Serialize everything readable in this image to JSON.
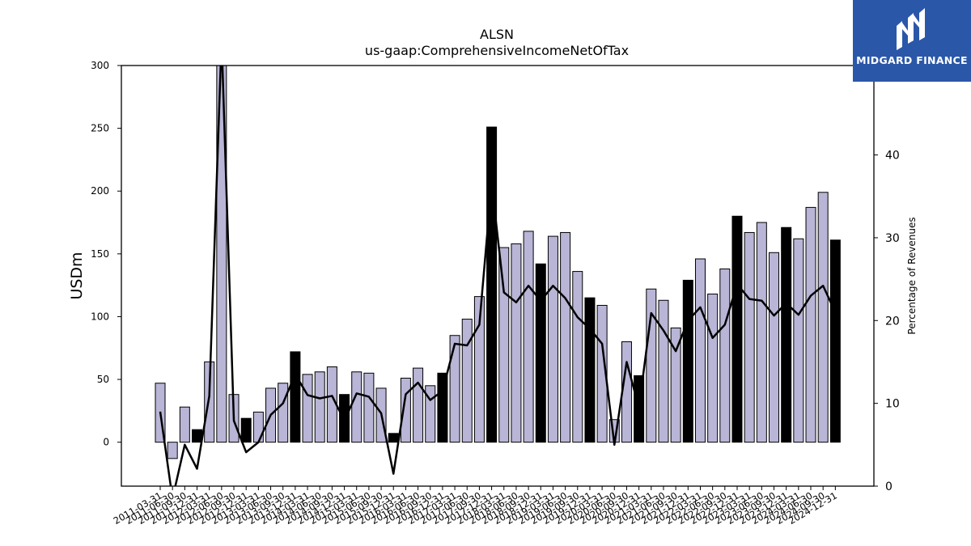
{
  "brand": {
    "name": "MIDGARD FINANCE",
    "logo_icon": "midgard-m-icon",
    "color": "#2b57a8"
  },
  "chart_data": {
    "type": "bar+line",
    "title": "ALSN",
    "subtitle": "us-gaap:ComprehensiveIncomeNetOfTax",
    "ylabel": "USDm",
    "y2label": "Percentage of Revenues",
    "ylim": [
      -35,
      300
    ],
    "y2lim": [
      0,
      50.8
    ],
    "yticks": [
      0,
      50,
      100,
      150,
      200,
      250,
      300
    ],
    "y2ticks": [
      0,
      10,
      20,
      30,
      40
    ],
    "bar_color": "#b8b5d6",
    "q4_bar_color": "#000000",
    "line_color": "#000000",
    "categories": [
      "2011-03-31",
      "2011-06-30",
      "2011-09-30",
      "2011-12-31",
      "2012-03-31",
      "2012-06-30",
      "2012-09-30",
      "2012-12-31",
      "2013-03-31",
      "2013-06-30",
      "2013-09-30",
      "2013-12-31",
      "2014-03-31",
      "2014-06-30",
      "2014-09-30",
      "2014-12-31",
      "2015-03-31",
      "2015-06-30",
      "2015-09-30",
      "2015-12-31",
      "2016-03-31",
      "2016-06-30",
      "2016-09-30",
      "2016-12-31",
      "2017-03-31",
      "2017-06-30",
      "2017-09-30",
      "2017-12-31",
      "2018-03-31",
      "2018-06-30",
      "2018-09-30",
      "2018-12-31",
      "2019-03-31",
      "2019-06-30",
      "2019-09-30",
      "2019-12-31",
      "2020-03-31",
      "2020-06-30",
      "2020-09-30",
      "2020-12-31",
      "2021-03-31",
      "2021-06-30",
      "2021-09-30",
      "2021-12-31",
      "2022-03-31",
      "2022-06-30",
      "2022-09-30",
      "2022-12-31",
      "2023-03-31",
      "2023-06-30",
      "2023-09-30",
      "2023-12-31",
      "2024-03-31",
      "2024-06-30",
      "2024-09-30",
      "2024-12-31"
    ],
    "series": [
      {
        "type": "bar",
        "axis": "left",
        "values": [
          47,
          -13,
          28,
          10,
          64,
          320,
          38,
          19,
          24,
          43,
          47,
          72,
          54,
          56,
          60,
          38,
          56,
          55,
          43,
          7,
          51,
          59,
          45,
          55,
          85,
          98,
          116,
          251,
          155,
          158,
          168,
          142,
          164,
          167,
          136,
          115,
          109,
          18,
          80,
          53,
          122,
          113,
          91,
          129,
          146,
          118,
          138,
          180,
          167,
          175,
          151,
          171,
          162,
          187,
          199,
          161
        ]
      },
      {
        "type": "line",
        "axis": "right",
        "values": [
          9.0,
          -1.5,
          5.0,
          2.1,
          10.9,
          54.0,
          7.9,
          4.1,
          5.3,
          8.6,
          10.0,
          13.5,
          11.0,
          10.6,
          10.9,
          7.9,
          11.2,
          10.8,
          8.8,
          1.5,
          11.1,
          12.5,
          10.4,
          11.5,
          17.2,
          17.0,
          19.5,
          36.6,
          23.4,
          22.2,
          24.2,
          22.4,
          24.2,
          22.7,
          20.4,
          19.0,
          17.2,
          5.0,
          15.0,
          9.5,
          20.9,
          18.8,
          16.3,
          20.0,
          21.6,
          17.9,
          19.5,
          24.4,
          22.6,
          22.4,
          20.6,
          22.1,
          20.7,
          23.0,
          24.2,
          21.0
        ]
      }
    ]
  }
}
